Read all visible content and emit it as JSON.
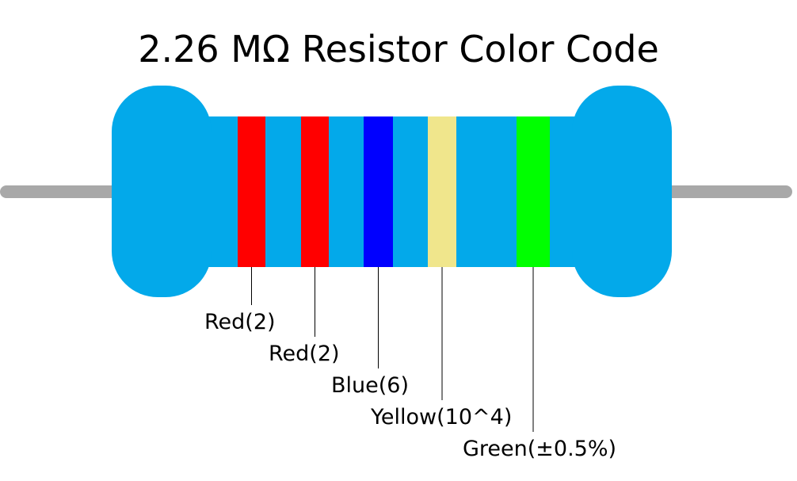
{
  "title": "2.26 MΩ Resistor Color Code",
  "bands": [
    {
      "label": "Red(2)",
      "color": "#ff0000"
    },
    {
      "label": "Red(2)",
      "color": "#ff0000"
    },
    {
      "label": "Blue(6)",
      "color": "#0000ff"
    },
    {
      "label": "Yellow(10^4)",
      "color": "#f0e68c"
    },
    {
      "label": "Green(±0.5%)",
      "color": "#00ff00"
    }
  ]
}
